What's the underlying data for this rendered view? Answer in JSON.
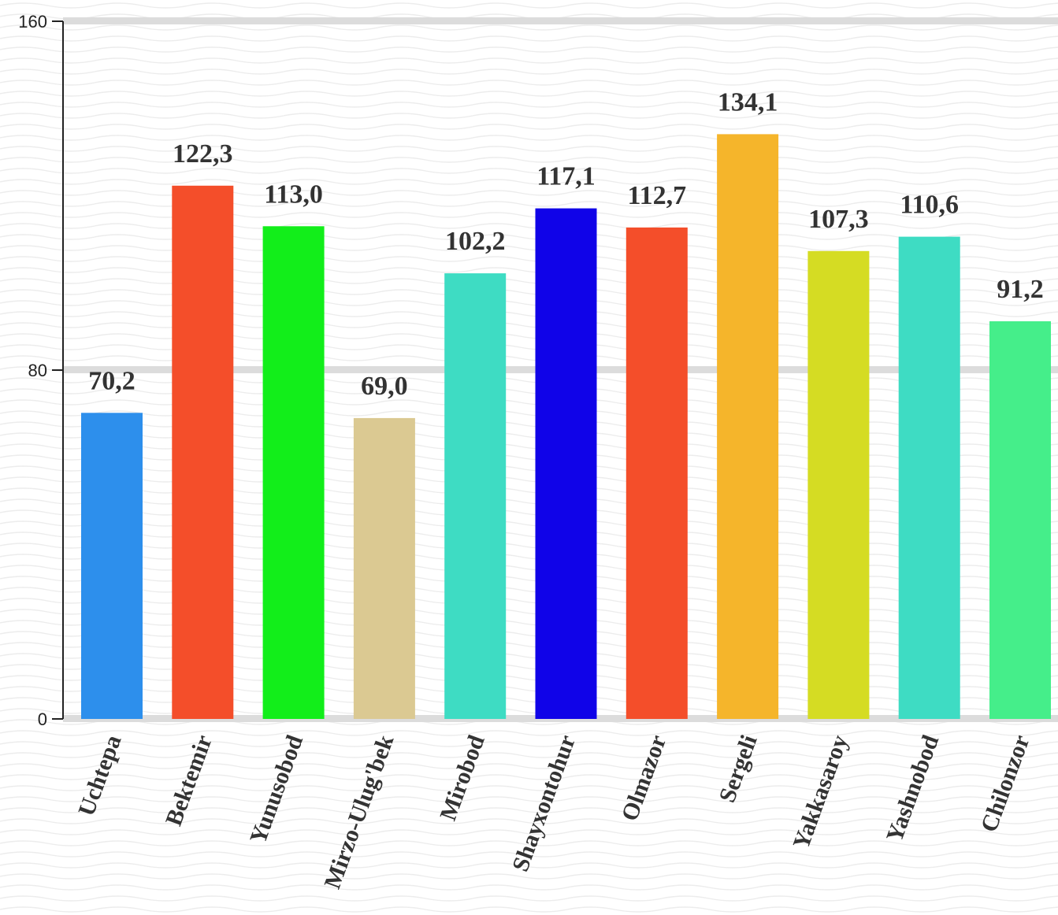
{
  "chart_data": {
    "type": "bar",
    "categories": [
      "Uchtepa",
      "Bektemir",
      "Yunusobod",
      "Mirzo-Ulug'bek",
      "Mirobod",
      "Shayxontohur",
      "Olmazor",
      "Sergeli",
      "Yakkasaroy",
      "Yashnobod",
      "Chilonzor"
    ],
    "values": [
      70.2,
      122.3,
      113.0,
      69.0,
      102.2,
      117.1,
      112.7,
      134.1,
      107.3,
      110.6,
      91.2
    ],
    "value_labels": [
      "70,2",
      "122,3",
      "113,0",
      "69,0",
      "102,2",
      "117,1",
      "112,7",
      "134,1",
      "107,3",
      "110,6",
      "91,2"
    ],
    "colors": [
      "#2d8fec",
      "#f44e2a",
      "#12ee1a",
      "#dbc992",
      "#3edcc3",
      "#1003e8",
      "#f44e2a",
      "#f5b52b",
      "#d5dc23",
      "#3edcc3",
      "#45ee8a"
    ],
    "y_ticks": [
      0,
      80,
      160
    ],
    "ylim": [
      0,
      160
    ],
    "grid": true,
    "title": "",
    "xlabel": "",
    "ylabel": ""
  }
}
